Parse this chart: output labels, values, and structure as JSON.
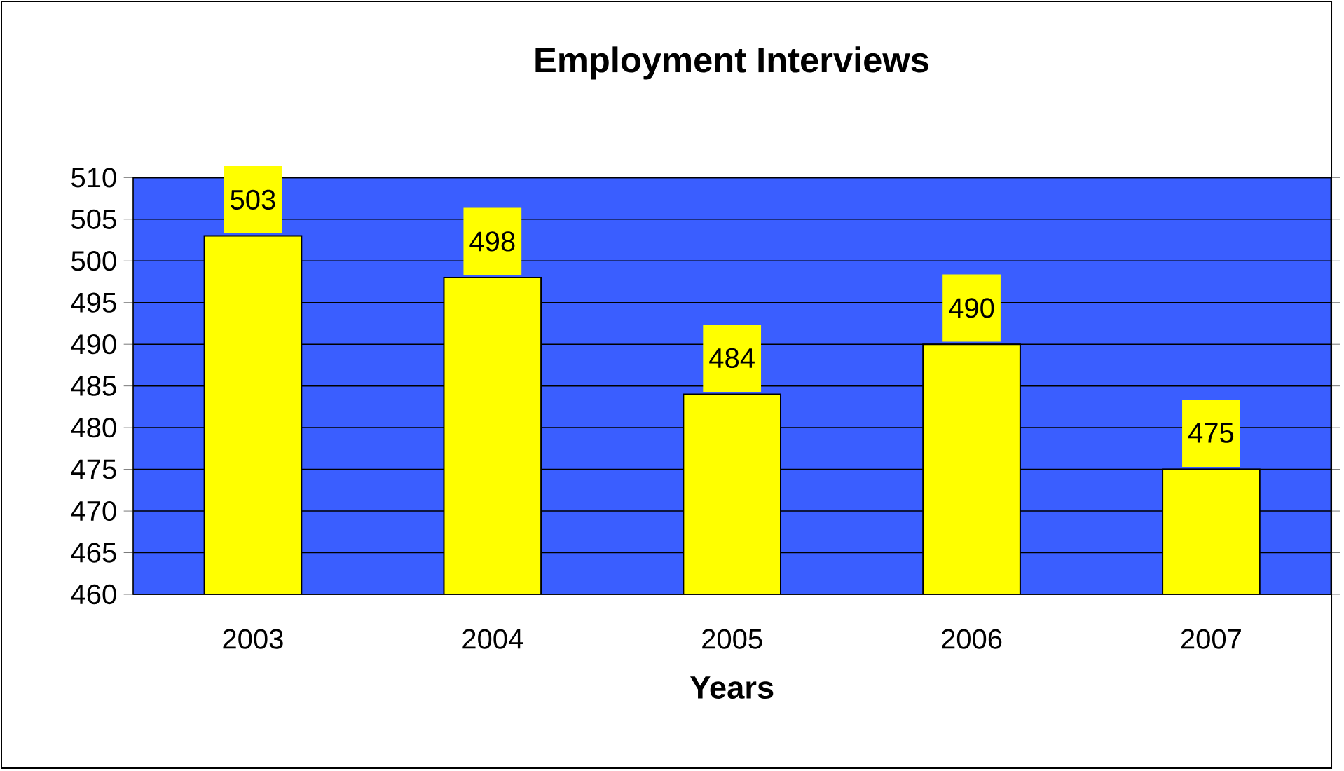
{
  "chart_data": {
    "type": "bar",
    "title": "Employment Interviews",
    "xlabel": "Years",
    "categories": [
      "2003",
      "2004",
      "2005",
      "2006",
      "2007"
    ],
    "values": [
      503,
      498,
      484,
      490,
      475
    ],
    "color": "#ffff00",
    "ylim": [
      460,
      510
    ],
    "yticks": [
      460,
      465,
      470,
      475,
      480,
      485,
      490,
      495,
      500,
      505,
      510
    ],
    "grid": "y",
    "data_labels": true
  }
}
